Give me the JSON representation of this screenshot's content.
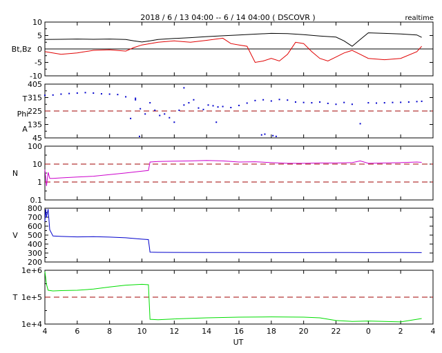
{
  "header": {
    "title": "2018 / 6 / 13   04:00 --  6 / 14   04:00 ( DSCOVR )",
    "mode": "realtime"
  },
  "colors": {
    "bt": "#000000",
    "bz": "#e00000",
    "phi": "#0000cc",
    "reference_line": "#a00000",
    "density": "#cc00cc",
    "speed": "#0000cc",
    "temperature": "#00dd00"
  },
  "chart_data": [
    {
      "id": "magnetic_field",
      "type": "line",
      "ylabel": "Bt,Bz",
      "ylim": [
        -10,
        10
      ],
      "yticks": [
        "-10",
        "-5",
        "0",
        "5",
        "10"
      ],
      "ref_lines": [
        0
      ],
      "x_unit": "hours since 2018-06-13 00:00 UT",
      "series": [
        {
          "name": "Bt",
          "color": "#000000",
          "x": [
            4.0,
            5.0,
            6.0,
            7.0,
            8.0,
            9.0,
            9.5,
            10.0,
            10.5,
            11.0,
            12.0,
            13.0,
            14.0,
            15.0,
            16.0,
            17.0,
            18.0,
            19.0,
            20.0,
            21.0,
            22.0,
            22.5,
            23.0,
            23.5,
            24.0,
            25.0,
            26.0,
            27.0,
            27.3
          ],
          "y": [
            3.5,
            3.6,
            3.7,
            3.6,
            3.7,
            3.5,
            3.0,
            2.6,
            3.0,
            3.5,
            3.9,
            4.2,
            4.6,
            4.9,
            5.2,
            5.5,
            5.8,
            5.7,
            5.3,
            4.8,
            4.4,
            3.0,
            1.0,
            3.5,
            6.0,
            5.8,
            5.6,
            5.2,
            4.3
          ]
        },
        {
          "name": "Bz",
          "color": "#e00000",
          "x": [
            4.0,
            5.0,
            6.0,
            7.0,
            8.0,
            9.0,
            9.5,
            10.0,
            10.5,
            11.0,
            12.0,
            13.0,
            14.0,
            15.0,
            15.5,
            16.0,
            16.5,
            17.0,
            17.5,
            18.0,
            18.5,
            19.0,
            19.5,
            20.0,
            20.5,
            21.0,
            21.5,
            22.0,
            22.5,
            23.0,
            23.5,
            24.0,
            25.0,
            26.0,
            27.0,
            27.3
          ],
          "y": [
            -1.0,
            -2.0,
            -1.5,
            -0.5,
            -0.3,
            -0.8,
            0.5,
            1.5,
            2.0,
            2.5,
            3.0,
            2.5,
            3.2,
            4.0,
            2.0,
            1.5,
            1.0,
            -5.0,
            -4.5,
            -3.5,
            -4.5,
            -2.0,
            2.5,
            2.0,
            -1.0,
            -3.5,
            -4.5,
            -3.0,
            -1.5,
            -0.5,
            -2.0,
            -3.5,
            -4.0,
            -3.5,
            -1.0,
            1.0
          ]
        }
      ]
    },
    {
      "id": "phi_angle",
      "type": "scatter",
      "ylabel_lines": [
        "T",
        "Phi",
        "A"
      ],
      "ylim": [
        45,
        405
      ],
      "yticks": [
        "45",
        "135",
        "225",
        "315",
        "405"
      ],
      "ref_lines": [
        225
      ],
      "x_unit": "hours since 2018-06-13 00:00 UT",
      "series": [
        {
          "name": "Phi",
          "color": "#0000cc",
          "x": [
            4.0,
            4.5,
            5.0,
            5.5,
            6.0,
            6.5,
            7.0,
            7.5,
            8.0,
            8.5,
            9.0,
            9.3,
            9.6,
            9.9,
            10.2,
            10.5,
            10.8,
            11.1,
            11.4,
            11.7,
            12.0,
            12.3,
            12.6,
            12.9,
            13.2,
            13.5,
            13.8,
            14.1,
            14.4,
            14.7,
            15.0,
            15.5,
            16.0,
            16.5,
            17.0,
            17.5,
            18.0,
            18.5,
            19.0,
            19.5,
            20.0,
            20.5,
            21.0,
            21.5,
            22.0,
            22.5,
            23.0,
            23.5,
            24.0,
            24.5,
            25.0,
            25.5,
            26.0,
            26.5,
            27.0,
            27.3
          ],
          "y": [
            330,
            332,
            338,
            342,
            345,
            348,
            345,
            340,
            338,
            335,
            320,
            175,
            310,
            240,
            205,
            280,
            230,
            195,
            205,
            180,
            150,
            230,
            265,
            280,
            300,
            245,
            235,
            265,
            260,
            252,
            255,
            248,
            262,
            278,
            295,
            300,
            292,
            302,
            298,
            285,
            282,
            280,
            285,
            276,
            270,
            282,
            270,
            140,
            280,
            278,
            280,
            282,
            283,
            285,
            288,
            290
          ]
        },
        {
          "name": "Phi outliers",
          "color": "#0000cc",
          "x": [
            9.6,
            9.85,
            12.6,
            14.6,
            17.4,
            17.6,
            18.1,
            18.3
          ],
          "y": [
            300,
            55,
            380,
            150,
            65,
            70,
            60,
            55
          ]
        }
      ]
    },
    {
      "id": "density",
      "type": "line",
      "ylabel": "N",
      "yscale": "log",
      "ylim": [
        0.1,
        100
      ],
      "yticks": [
        "0.1",
        "1",
        "10",
        "100"
      ],
      "ref_lines": [
        1,
        10
      ],
      "x_unit": "hours since 2018-06-13 00:00 UT",
      "series": [
        {
          "name": "N",
          "color": "#cc00cc",
          "x": [
            4.0,
            4.1,
            4.2,
            4.3,
            4.5,
            5.0,
            6.0,
            7.0,
            8.0,
            9.0,
            10.0,
            10.4,
            10.5,
            11.0,
            12.0,
            13.0,
            14.0,
            15.0,
            16.0,
            17.0,
            18.0,
            19.0,
            20.0,
            21.0,
            22.0,
            23.0,
            23.5,
            24.0,
            25.0,
            26.0,
            27.0,
            27.3
          ],
          "y": [
            5.0,
            0.6,
            3.5,
            1.6,
            1.6,
            1.7,
            1.9,
            2.1,
            2.6,
            3.2,
            4.0,
            4.4,
            13.0,
            14.0,
            14.5,
            15.0,
            16.0,
            15.0,
            13.0,
            13.5,
            12.0,
            11.0,
            11.0,
            11.5,
            11.5,
            12.0,
            15.0,
            11.0,
            11.5,
            12.0,
            13.0,
            12.5
          ]
        }
      ]
    },
    {
      "id": "speed",
      "type": "line",
      "ylabel": "V",
      "ylim": [
        200,
        800
      ],
      "yticks": [
        "200",
        "300",
        "400",
        "500",
        "600",
        "700",
        "800"
      ],
      "ref_lines": [],
      "x_unit": "hours since 2018-06-13 00:00 UT",
      "series": [
        {
          "name": "V",
          "color": "#0000cc",
          "x": [
            4.0,
            4.05,
            4.1,
            4.2,
            4.3,
            4.5,
            5.0,
            6.0,
            7.0,
            8.0,
            9.0,
            10.0,
            10.4,
            10.5,
            11.0,
            12.0,
            14.0,
            16.0,
            18.0,
            20.0,
            22.0,
            24.0,
            26.0,
            27.3
          ],
          "y": [
            650,
            790,
            700,
            790,
            560,
            490,
            485,
            480,
            482,
            478,
            470,
            455,
            450,
            310,
            308,
            307,
            306,
            306,
            305,
            305,
            306,
            305,
            306,
            305
          ]
        }
      ]
    },
    {
      "id": "temperature",
      "type": "line",
      "ylabel": "T",
      "yscale": "log",
      "ylim": [
        10000,
        1000000
      ],
      "yticks": [
        "1e+4",
        "1e+5",
        "1e+6"
      ],
      "ref_lines": [
        100000
      ],
      "x_unit": "hours since 2018-06-13 00:00 UT",
      "series": [
        {
          "name": "T",
          "color": "#00dd00",
          "x": [
            4.0,
            4.1,
            4.2,
            4.5,
            5.0,
            6.0,
            7.0,
            8.0,
            9.0,
            10.0,
            10.4,
            10.5,
            11.0,
            12.0,
            14.0,
            16.0,
            18.0,
            20.0,
            21.0,
            22.0,
            23.0,
            24.0,
            25.0,
            26.0,
            27.0,
            27.3
          ],
          "y": [
            900000,
            300000,
            180000,
            170000,
            175000,
            180000,
            200000,
            240000,
            280000,
            300000,
            290000,
            15000,
            14500,
            15500,
            17000,
            18000,
            18500,
            18000,
            17000,
            13500,
            12500,
            13000,
            12500,
            12000,
            15000,
            16000
          ]
        }
      ]
    }
  ],
  "x_axis": {
    "label": "UT",
    "range_hours": [
      4,
      28
    ],
    "tick_labels": [
      "4",
      "6",
      "8",
      "10",
      "12",
      "14",
      "16",
      "18",
      "20",
      "22",
      "0",
      "2",
      "4"
    ],
    "tick_hours": [
      4,
      6,
      8,
      10,
      12,
      14,
      16,
      18,
      20,
      22,
      24,
      26,
      28
    ]
  }
}
